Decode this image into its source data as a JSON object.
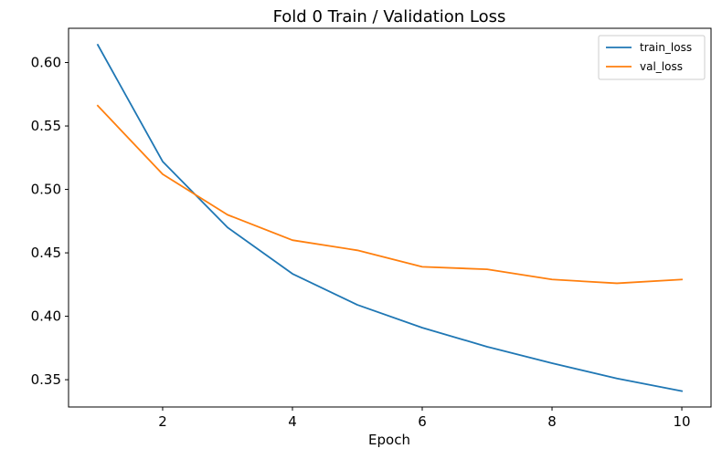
{
  "chart_data": {
    "type": "line",
    "title": "Fold 0 Train / Validation Loss",
    "xlabel": "Epoch",
    "ylabel": "",
    "x": [
      1,
      2,
      3,
      4,
      5,
      6,
      7,
      8,
      9,
      10
    ],
    "xlim": [
      0.55,
      10.45
    ],
    "ylim": [
      0.3285,
      0.627
    ],
    "xticks": [
      2,
      4,
      6,
      8,
      10
    ],
    "yticks": [
      0.35,
      0.4,
      0.45,
      0.5,
      0.55,
      0.6
    ],
    "xtick_labels": [
      "2",
      "4",
      "6",
      "8",
      "10"
    ],
    "ytick_labels": [
      "0.35",
      "0.40",
      "0.45",
      "0.50",
      "0.55",
      "0.60"
    ],
    "grid": false,
    "legend_position": "top-right",
    "series": [
      {
        "name": "train_loss",
        "color": "#1f77b4",
        "values": [
          0.614,
          0.522,
          0.47,
          0.4335,
          0.409,
          0.391,
          0.376,
          0.363,
          0.351,
          0.341
        ]
      },
      {
        "name": "val_loss",
        "color": "#ff7f0e",
        "values": [
          0.566,
          0.512,
          0.48,
          0.46,
          0.452,
          0.439,
          0.437,
          0.429,
          0.426,
          0.429
        ]
      }
    ]
  }
}
